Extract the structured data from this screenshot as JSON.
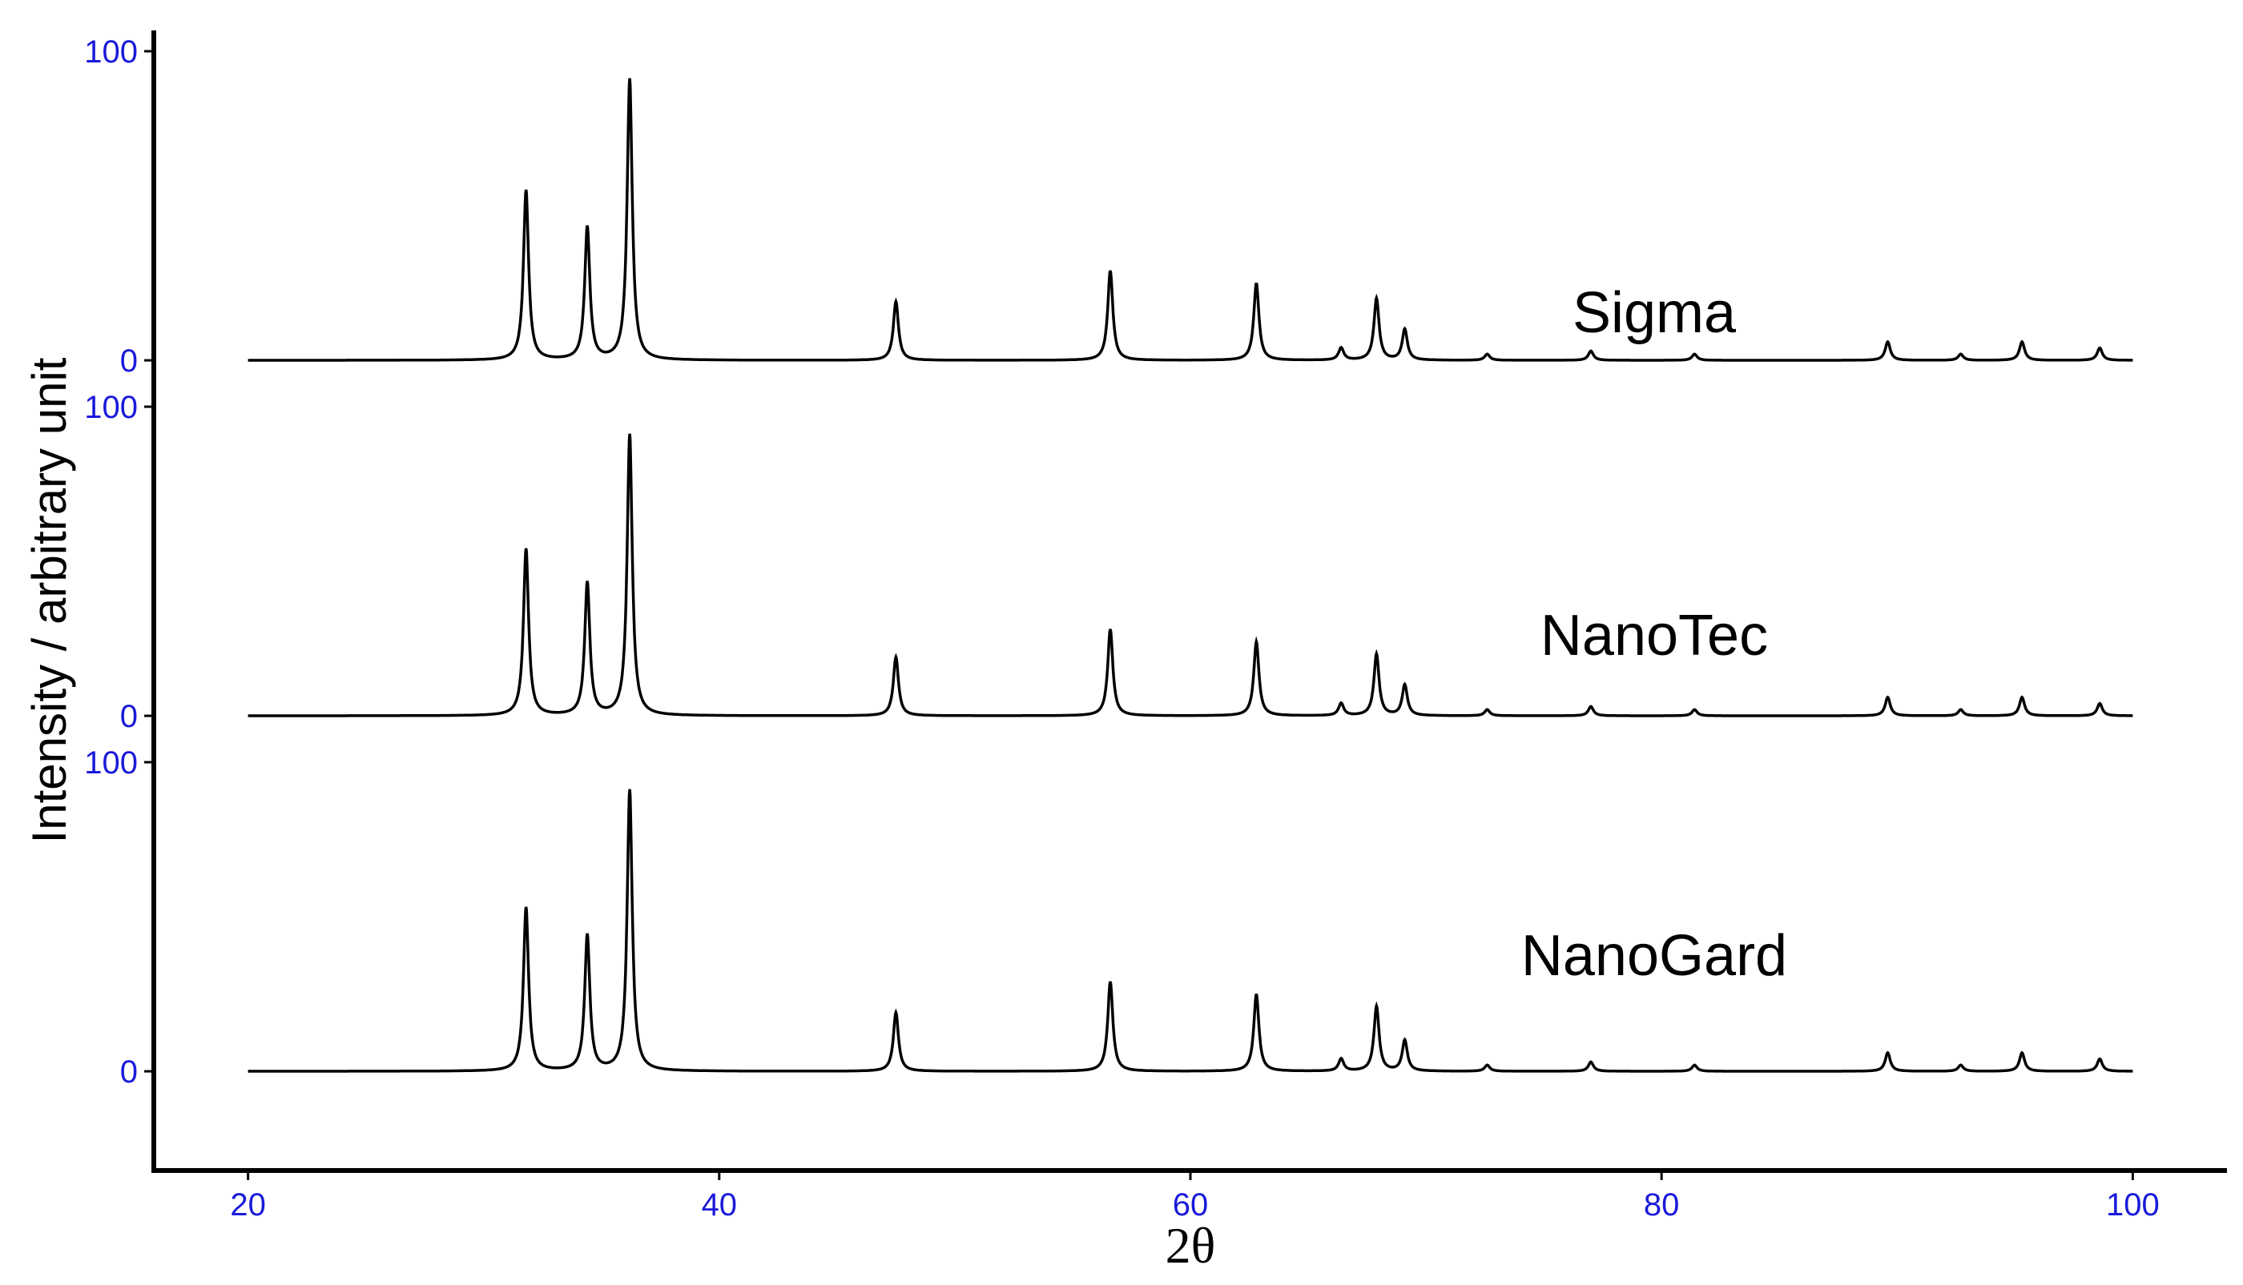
{
  "chart_data": {
    "type": "line",
    "xlabel": "2θ",
    "ylabel": "Intensity / arbitrary unit",
    "xlim": [
      16,
      104
    ],
    "xticks": [
      20,
      40,
      60,
      80,
      100
    ],
    "x_tick_labels": [
      "20",
      "40",
      "60",
      "80",
      "100"
    ],
    "y_tick_labels": [
      "0",
      "100"
    ],
    "panel_ylim": [
      -15,
      100
    ],
    "grid": false,
    "legend": "none",
    "colors": {
      "tick_label": "#1a1adb",
      "line": "#000000",
      "axis": "#000000"
    },
    "peak_halfwidth_deg": 0.13,
    "series": [
      {
        "name": "Sigma",
        "peaks": [
          {
            "x": 31.8,
            "y": 55
          },
          {
            "x": 34.4,
            "y": 43
          },
          {
            "x": 36.2,
            "y": 91
          },
          {
            "x": 47.5,
            "y": 19
          },
          {
            "x": 56.6,
            "y": 29
          },
          {
            "x": 62.8,
            "y": 25
          },
          {
            "x": 66.4,
            "y": 4
          },
          {
            "x": 67.9,
            "y": 20
          },
          {
            "x": 69.1,
            "y": 10
          },
          {
            "x": 72.6,
            "y": 2
          },
          {
            "x": 77.0,
            "y": 3
          },
          {
            "x": 81.4,
            "y": 2
          },
          {
            "x": 89.6,
            "y": 6
          },
          {
            "x": 92.7,
            "y": 2
          },
          {
            "x": 95.3,
            "y": 6
          },
          {
            "x": 98.6,
            "y": 4
          }
        ]
      },
      {
        "name": "NanoTec",
        "peaks": [
          {
            "x": 31.8,
            "y": 54
          },
          {
            "x": 34.4,
            "y": 43
          },
          {
            "x": 36.2,
            "y": 91
          },
          {
            "x": 47.5,
            "y": 19
          },
          {
            "x": 56.6,
            "y": 28
          },
          {
            "x": 62.8,
            "y": 24
          },
          {
            "x": 66.4,
            "y": 4
          },
          {
            "x": 67.9,
            "y": 20
          },
          {
            "x": 69.1,
            "y": 10
          },
          {
            "x": 72.6,
            "y": 2
          },
          {
            "x": 77.0,
            "y": 3
          },
          {
            "x": 81.4,
            "y": 2
          },
          {
            "x": 89.6,
            "y": 6
          },
          {
            "x": 92.7,
            "y": 2
          },
          {
            "x": 95.3,
            "y": 6
          },
          {
            "x": 98.6,
            "y": 4
          }
        ]
      },
      {
        "name": "NanoGard",
        "peaks": [
          {
            "x": 31.8,
            "y": 53
          },
          {
            "x": 34.4,
            "y": 44
          },
          {
            "x": 36.2,
            "y": 91
          },
          {
            "x": 47.5,
            "y": 19
          },
          {
            "x": 56.6,
            "y": 29
          },
          {
            "x": 62.8,
            "y": 25
          },
          {
            "x": 66.4,
            "y": 4
          },
          {
            "x": 67.9,
            "y": 21
          },
          {
            "x": 69.1,
            "y": 10
          },
          {
            "x": 72.6,
            "y": 2
          },
          {
            "x": 77.0,
            "y": 3
          },
          {
            "x": 81.4,
            "y": 2
          },
          {
            "x": 89.6,
            "y": 6
          },
          {
            "x": 92.7,
            "y": 2
          },
          {
            "x": 95.3,
            "y": 6
          },
          {
            "x": 98.6,
            "y": 4
          }
        ]
      }
    ],
    "x_range_data": [
      20,
      100
    ]
  }
}
